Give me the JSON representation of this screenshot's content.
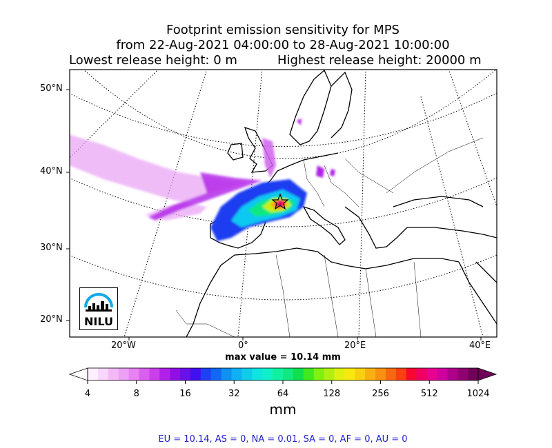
{
  "title": {
    "line1": "Footprint emission sensitivity for MPS",
    "line2": "from 22-Aug-2021 04:00:00 to 28-Aug-2021 10:00:00",
    "lowest": "Lowest release height: 0 m",
    "highest": "Highest release height: 20000 m"
  },
  "axes": {
    "lat_labels": [
      "50°N",
      "40°N",
      "30°N",
      "20°N"
    ],
    "lon_labels": [
      "20°W",
      "0°",
      "20°E",
      "40°E"
    ]
  },
  "max_value": "max value = 10.14 mm",
  "colorbar": {
    "ticks": [
      "4",
      "8",
      "16",
      "32",
      "64",
      "128",
      "256",
      "512",
      "1024"
    ],
    "unit": "mm",
    "colors": [
      "#fff0ff",
      "#f9d6fb",
      "#f3b9f7",
      "#eda0f5",
      "#e682f1",
      "#d960ee",
      "#c940ea",
      "#b020e8",
      "#9010e4",
      "#6a10e8",
      "#4010f0",
      "#2040f4",
      "#1068f4",
      "#1090f0",
      "#10b0f4",
      "#10cce8",
      "#10e4e0",
      "#10f0c8",
      "#10f0a0",
      "#10e880",
      "#10e050",
      "#40e820",
      "#80f010",
      "#b0f010",
      "#e0f010",
      "#f8e810",
      "#f8d010",
      "#f8b010",
      "#f89010",
      "#f86810",
      "#f84010",
      "#f80830",
      "#f00060",
      "#e80090",
      "#d000a0",
      "#b0008a",
      "#900070",
      "#700058"
    ]
  },
  "logo": {
    "text": "NILU",
    "icon": "nilu-logo-icon"
  },
  "footer": "EU = 10.14,  AS = 0,  NA = 0.01,  SA = 0,  AF = 0,  AU = 0"
}
